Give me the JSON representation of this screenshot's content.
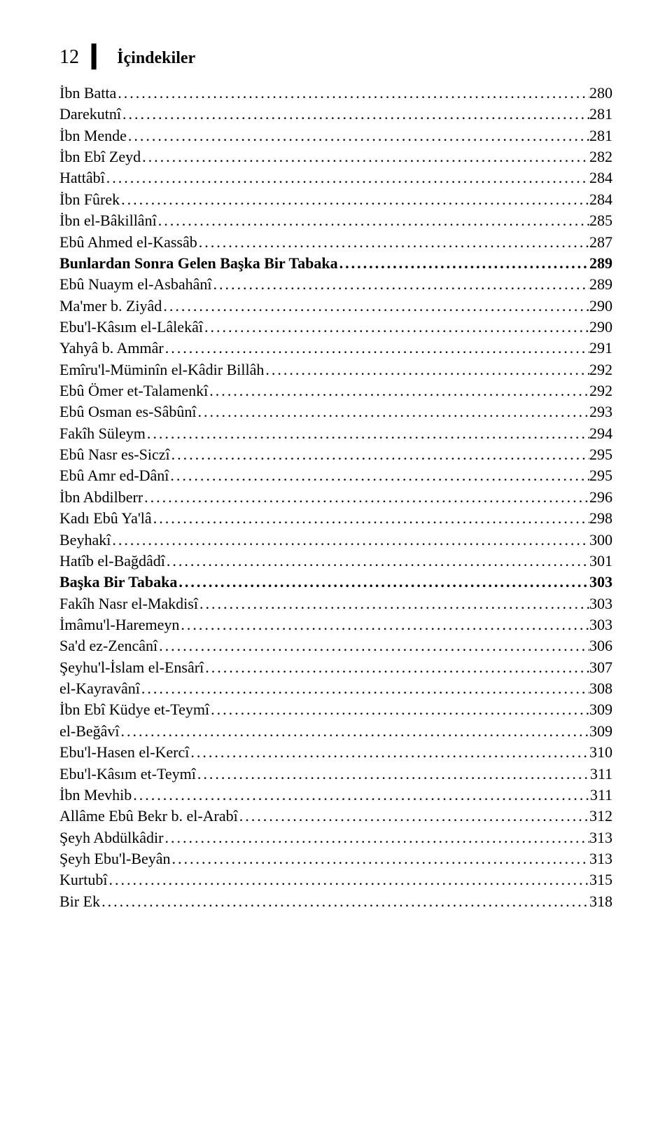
{
  "header": {
    "pageNumber": "12",
    "separator": "❙",
    "title": "İçindekiler"
  },
  "tocEntries": [
    {
      "label": "İbn Batta",
      "page": "280",
      "bold": false
    },
    {
      "label": "Darekutnî",
      "page": "281",
      "bold": false
    },
    {
      "label": "İbn Mende",
      "page": "281",
      "bold": false
    },
    {
      "label": "İbn Ebî Zeyd",
      "page": "282",
      "bold": false
    },
    {
      "label": "Hattâbî",
      "page": "284",
      "bold": false
    },
    {
      "label": "İbn Fûrek",
      "page": "284",
      "bold": false
    },
    {
      "label": "İbn el-Bâkillânî",
      "page": "285",
      "bold": false
    },
    {
      "label": "Ebû Ahmed el-Kassâb",
      "page": "287",
      "bold": false
    },
    {
      "label": "Bunlardan Sonra Gelen Başka Bir Tabaka",
      "page": "289",
      "bold": true
    },
    {
      "label": "Ebû Nuaym el-Asbahânî",
      "page": "289",
      "bold": false
    },
    {
      "label": "Ma'mer b. Ziyâd",
      "page": "290",
      "bold": false
    },
    {
      "label": "Ebu'l-Kâsım el-Lâlekâî",
      "page": "290",
      "bold": false
    },
    {
      "label": "Yahyâ b. Ammâr",
      "page": "291",
      "bold": false
    },
    {
      "label": "Emîru'l-Müminîn el-Kâdir Billâh",
      "page": "292",
      "bold": false
    },
    {
      "label": "Ebû Ömer et-Talamenkî",
      "page": "292",
      "bold": false
    },
    {
      "label": "Ebû Osman es-Sâbûnî",
      "page": "293",
      "bold": false
    },
    {
      "label": "Fakîh Süleym",
      "page": "294",
      "bold": false
    },
    {
      "label": "Ebû Nasr es-Siczî",
      "page": "295",
      "bold": false
    },
    {
      "label": "Ebû Amr ed-Dânî",
      "page": "295",
      "bold": false
    },
    {
      "label": "İbn Abdilberr",
      "page": "296",
      "bold": false
    },
    {
      "label": "Kadı Ebû Ya'lâ",
      "page": "298",
      "bold": false
    },
    {
      "label": "Beyhakî",
      "page": "300",
      "bold": false
    },
    {
      "label": "Hatîb el-Bağdâdî",
      "page": "301",
      "bold": false
    },
    {
      "label": "Başka Bir Tabaka",
      "page": "303",
      "bold": true
    },
    {
      "label": "Fakîh Nasr el-Makdisî",
      "page": "303",
      "bold": false
    },
    {
      "label": "İmâmu'l-Haremeyn",
      "page": "303",
      "bold": false
    },
    {
      "label": "Sa'd ez-Zencânî",
      "page": "306",
      "bold": false
    },
    {
      "label": "Şeyhu'l-İslam el-Ensârî",
      "page": "307",
      "bold": false
    },
    {
      "label": "el-Kayravânî",
      "page": "308",
      "bold": false
    },
    {
      "label": "İbn Ebî Küdye et-Teymî",
      "page": "309",
      "bold": false
    },
    {
      "label": "el-Beğâvî",
      "page": "309",
      "bold": false
    },
    {
      "label": "Ebu'l-Hasen el-Kercî",
      "page": "310",
      "bold": false
    },
    {
      "label": "Ebu'l-Kâsım et-Teymî",
      "page": "311",
      "bold": false
    },
    {
      "label": "İbn Mevhib",
      "page": "311",
      "bold": false
    },
    {
      "label": "Allâme Ebû Bekr b. el-Arabî",
      "page": "312",
      "bold": false
    },
    {
      "label": "Şeyh Abdülkâdir",
      "page": "313",
      "bold": false
    },
    {
      "label": "Şeyh Ebu'l-Beyân",
      "page": "313",
      "bold": false
    },
    {
      "label": "Kurtubî",
      "page": "315",
      "bold": false
    },
    {
      "label": "Bir Ek",
      "page": "318",
      "bold": false
    }
  ],
  "styles": {
    "bodyBg": "#ffffff",
    "textColor": "#000000",
    "fontSize": 22,
    "headerFontSize": 24,
    "pageNumberFontSize": 28,
    "lineHeight": 1.38
  }
}
